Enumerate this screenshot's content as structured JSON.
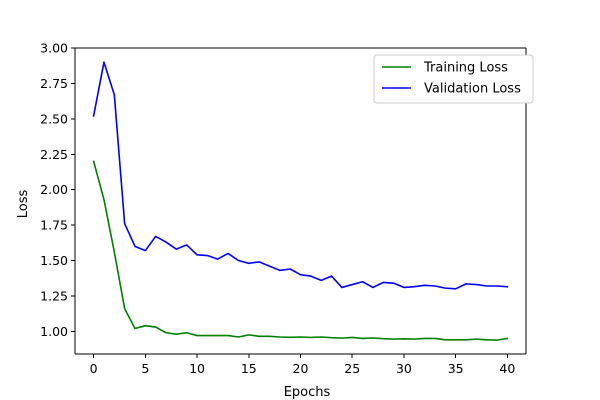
{
  "chart_data": {
    "type": "line",
    "title": "",
    "xlabel": "Epochs",
    "ylabel": "Loss",
    "xlim": [
      -1.8,
      41.8
    ],
    "ylim": [
      0.84,
      3.0
    ],
    "xticks": [
      0,
      5,
      10,
      15,
      20,
      25,
      30,
      35,
      40
    ],
    "xtick_labels": [
      "0",
      "5",
      "10",
      "15",
      "20",
      "25",
      "30",
      "35",
      "40"
    ],
    "yticks": [
      1.0,
      1.25,
      1.5,
      1.75,
      2.0,
      2.25,
      2.5,
      2.75,
      3.0
    ],
    "ytick_labels": [
      "1.00",
      "1.25",
      "1.50",
      "1.75",
      "2.00",
      "2.25",
      "2.50",
      "2.75",
      "3.00"
    ],
    "grid": false,
    "legend_position": "top-right",
    "x": [
      0,
      1,
      2,
      3,
      4,
      5,
      6,
      7,
      8,
      9,
      10,
      11,
      12,
      13,
      14,
      15,
      16,
      17,
      18,
      19,
      20,
      21,
      22,
      23,
      24,
      25,
      26,
      27,
      28,
      29,
      30,
      31,
      32,
      33,
      34,
      35,
      36,
      37,
      38,
      39,
      40
    ],
    "series": [
      {
        "name": "Training Loss",
        "color": "#008000",
        "values": [
          2.2,
          1.93,
          1.56,
          1.16,
          1.02,
          1.04,
          1.03,
          0.99,
          0.98,
          0.99,
          0.97,
          0.97,
          0.97,
          0.97,
          0.96,
          0.975,
          0.965,
          0.965,
          0.96,
          0.958,
          0.96,
          0.957,
          0.96,
          0.955,
          0.952,
          0.957,
          0.95,
          0.953,
          0.948,
          0.945,
          0.947,
          0.945,
          0.95,
          0.95,
          0.94,
          0.94,
          0.94,
          0.945,
          0.94,
          0.938,
          0.95
        ]
      },
      {
        "name": "Validation Loss",
        "color": "#0000ff",
        "values": [
          2.52,
          2.9,
          2.67,
          1.76,
          1.6,
          1.57,
          1.67,
          1.63,
          1.58,
          1.61,
          1.54,
          1.535,
          1.51,
          1.55,
          1.5,
          1.48,
          1.49,
          1.46,
          1.43,
          1.44,
          1.4,
          1.39,
          1.36,
          1.39,
          1.31,
          1.33,
          1.35,
          1.31,
          1.345,
          1.34,
          1.31,
          1.315,
          1.325,
          1.32,
          1.305,
          1.3,
          1.335,
          1.33,
          1.32,
          1.32,
          1.315
        ]
      }
    ]
  }
}
